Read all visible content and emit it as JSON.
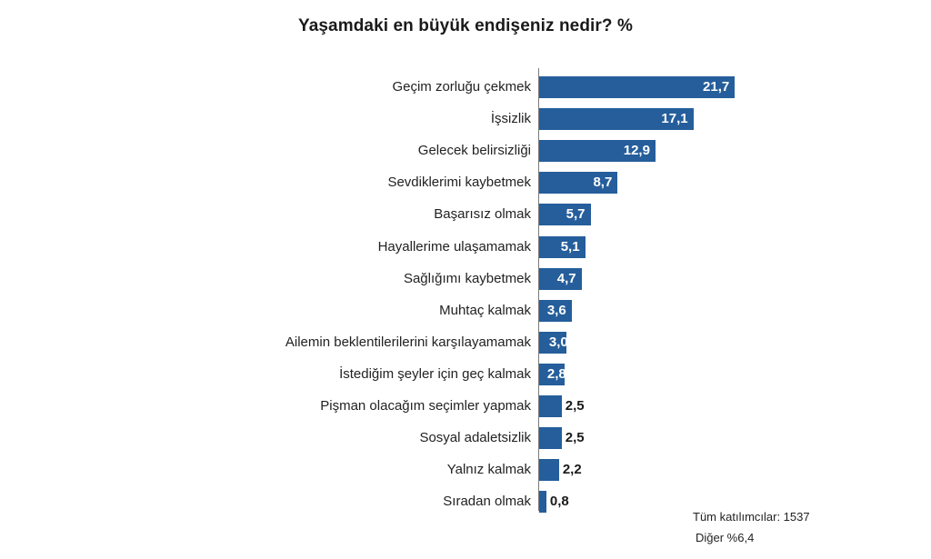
{
  "chart_data": {
    "type": "bar",
    "orientation": "horizontal",
    "title": "Yaşamdaki en büyük endişeniz nedir? %",
    "xlabel": "",
    "ylabel": "",
    "grid": false,
    "categories": [
      "Geçim zorluğu çekmek",
      "İşsizlik",
      "Gelecek belirsizliği",
      "Sevdiklerimi kaybetmek",
      "Başarısız olmak",
      "Hayallerime ulaşamamak",
      "Sağlığımı kaybetmek",
      "Muhtaç kalmak",
      "Ailemin beklentilerilerini karşılayamamak",
      "İstediğim şeyler için geç kalmak",
      "Pişman olacağım seçimler yapmak",
      "Sosyal adaletsizlik",
      "Yalnız kalmak",
      "Sıradan olmak"
    ],
    "values": [
      21.7,
      17.1,
      12.9,
      8.7,
      5.7,
      5.1,
      4.7,
      3.6,
      3.0,
      2.8,
      2.5,
      2.5,
      2.2,
      0.8
    ],
    "value_labels": [
      "21,7",
      "17,1",
      "12,9",
      "8,7",
      "5,7",
      "5,1",
      "4,7",
      "3,6",
      "3,0",
      "2,8",
      "2,5",
      "2,5",
      "2,2",
      "0,8"
    ],
    "bar_color": "#255e9b",
    "annotations": [
      "Tüm katılımcılar: 1537",
      "Diğer %6,4"
    ]
  },
  "notes": {
    "participants": "Tüm katılımcılar: 1537",
    "other": "Diğer %6,4"
  }
}
